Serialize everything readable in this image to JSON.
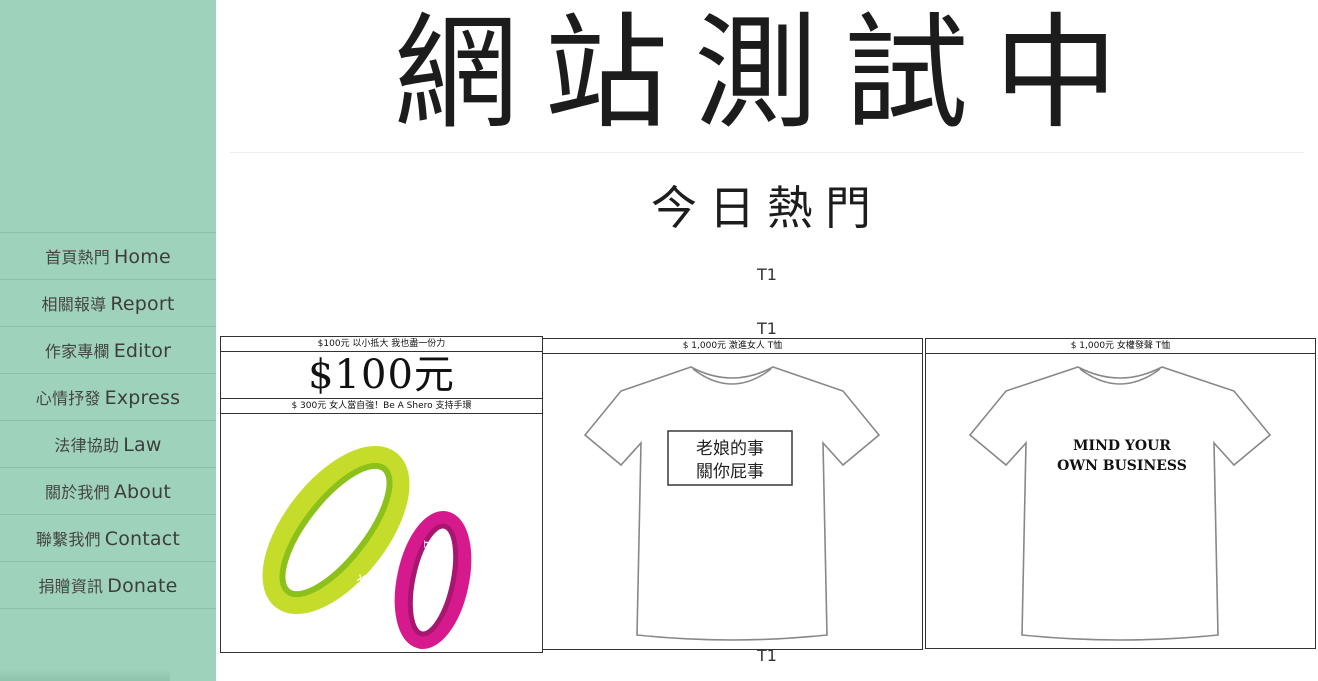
{
  "site": {
    "title": "網站測試中"
  },
  "nav": [
    {
      "zh": "首頁熱門",
      "en": "Home"
    },
    {
      "zh": "相關報導",
      "en": "Report"
    },
    {
      "zh": "作家專欄",
      "en": "Editor"
    },
    {
      "zh": "心情抒發",
      "en": "Express"
    },
    {
      "zh": "法律協助",
      "en": "Law"
    },
    {
      "zh": "關於我們",
      "en": "About"
    },
    {
      "zh": "聯繫我們",
      "en": "Contact"
    },
    {
      "zh": "捐贈資訊",
      "en": "Donate"
    }
  ],
  "section": {
    "title": "今日熱門",
    "label_top": "T1",
    "label_mid": "T1",
    "label_bottom": "T1"
  },
  "products": {
    "donation": {
      "caption": "$100元 以小抵大 我也盡一份力",
      "price": "$100元"
    },
    "bracelet": {
      "caption": "$ 300元 女人當自強！Be A Shero 支持手環",
      "text_green": "女人當自強！",
      "text_pink": "Be A Shero"
    },
    "tshirt1": {
      "caption": "$ 1,000元 激進女人 T恤",
      "line1": "老娘的事",
      "line2": "關你屁事"
    },
    "tshirt2": {
      "caption": "$ 1,000元 女權發聲 T恤",
      "line1": "MIND YOUR",
      "line2": "OWN BUSINESS"
    }
  }
}
